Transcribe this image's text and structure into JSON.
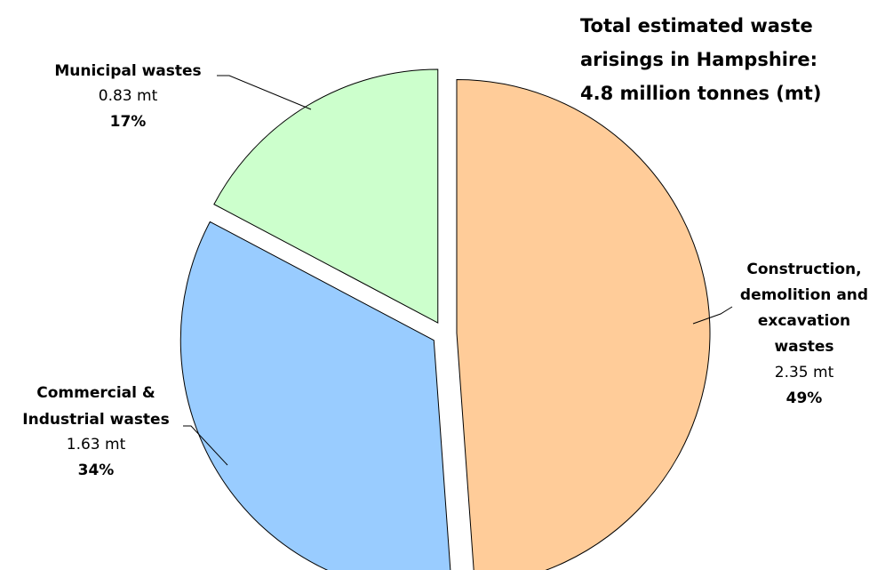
{
  "chart_data": {
    "type": "pie",
    "title_lines": [
      "Total estimated waste",
      "arisings in Hampshire:",
      "4.8 million tonnes (mt)"
    ],
    "slices": [
      {
        "name_lines": [
          "Construction,",
          "demolition and",
          "excavation",
          "wastes"
        ],
        "value": 2.35,
        "value_label": "2.35 mt",
        "percent": 49,
        "percent_label": "49%",
        "color": "#FFCC99"
      },
      {
        "name_lines": [
          "Commercial &",
          "Industrial wastes"
        ],
        "value": 1.63,
        "value_label": "1.63 mt",
        "percent": 34,
        "percent_label": "34%",
        "color": "#99CCFF"
      },
      {
        "name_lines": [
          "Municipal wastes"
        ],
        "value": 0.83,
        "value_label": "0.83 mt",
        "percent": 17,
        "percent_label": "17%",
        "color": "#CCFFCC"
      }
    ]
  }
}
